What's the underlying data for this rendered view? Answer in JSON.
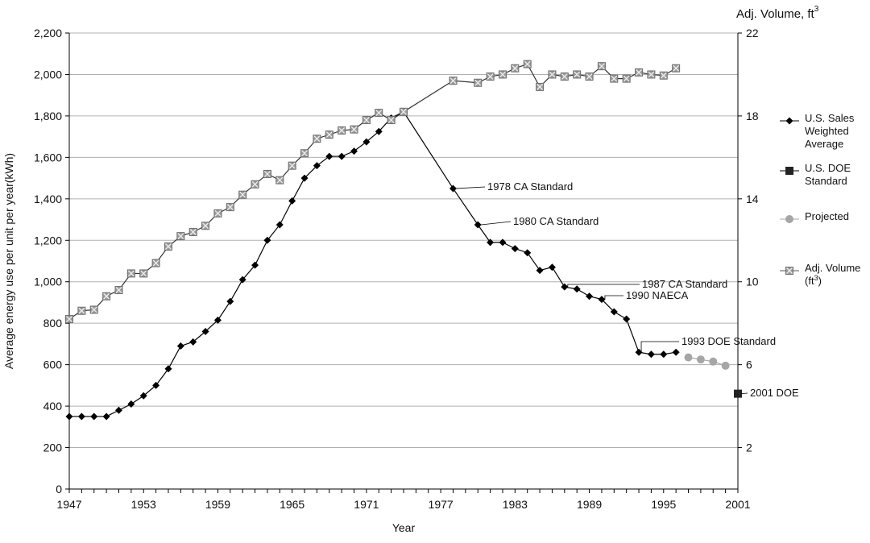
{
  "chart_data": {
    "type": "line",
    "xlabel": "Year",
    "ylabel": "Average energy use per unit per year(kWh)",
    "y2label": "Adj. Volume, ft",
    "y2label_sup": "3",
    "xlim": [
      1947,
      2001
    ],
    "ylim": [
      0,
      2200
    ],
    "y2lim": [
      0,
      22
    ],
    "x_ticks": [
      "1947",
      "1953",
      "1959",
      "1965",
      "1971",
      "1977",
      "1983",
      "1989",
      "1995",
      "2001"
    ],
    "y_ticks": [
      "0",
      "200",
      "400",
      "600",
      "800",
      "1,000",
      "1,200",
      "1,400",
      "1,600",
      "1,800",
      "2,000",
      "2,200"
    ],
    "y2_ticks": [
      "2",
      "6",
      "10",
      "14",
      "18",
      "22"
    ],
    "grid": true,
    "legend_position": "right",
    "series": [
      {
        "name": "U.S. Sales Weighted Average",
        "name_lines": [
          "U.S. Sales",
          "Weighted",
          "Average"
        ],
        "axis": "left",
        "color": "#000000",
        "marker": "diamond",
        "x": [
          1947,
          1948,
          1949,
          1950,
          1951,
          1952,
          1953,
          1954,
          1955,
          1956,
          1957,
          1958,
          1959,
          1960,
          1961,
          1962,
          1963,
          1964,
          1965,
          1966,
          1967,
          1968,
          1969,
          1970,
          1971,
          1972,
          1973,
          1974,
          1978,
          1980,
          1981,
          1982,
          1983,
          1984,
          1985,
          1986,
          1987,
          1988,
          1989,
          1990,
          1991,
          1992,
          1993,
          1994,
          1995,
          1996
        ],
        "y": [
          350,
          350,
          350,
          350,
          380,
          410,
          450,
          500,
          580,
          690,
          710,
          760,
          815,
          905,
          1010,
          1080,
          1200,
          1275,
          1390,
          1500,
          1560,
          1605,
          1605,
          1630,
          1675,
          1725,
          1790,
          1820,
          1450,
          1275,
          1190,
          1190,
          1160,
          1140,
          1055,
          1070,
          975,
          965,
          930,
          915,
          855,
          820,
          660,
          650,
          650,
          660
        ]
      },
      {
        "name": "U.S. DOE Standard",
        "name_lines": [
          "U.S. DOE",
          "Standard"
        ],
        "axis": "left",
        "color": "#222222",
        "marker": "square",
        "x": [
          2001
        ],
        "y": [
          460
        ]
      },
      {
        "name": "Projected",
        "name_lines": [
          "Projected"
        ],
        "axis": "left",
        "color": "#a6a6a6",
        "marker": "circle",
        "x": [
          1997,
          1998,
          1999,
          2000
        ],
        "y": [
          635,
          625,
          615,
          595
        ]
      },
      {
        "name": "Adj. Volume (ft3)",
        "name_lines": [
          "Adj. Volume",
          "(ft"
        ],
        "name_sup": "3",
        "name_tail": ")",
        "axis": "right",
        "color": "#777777",
        "marker": "square-x",
        "x": [
          1947,
          1948,
          1949,
          1950,
          1951,
          1952,
          1953,
          1954,
          1955,
          1956,
          1957,
          1958,
          1959,
          1960,
          1961,
          1962,
          1963,
          1964,
          1965,
          1966,
          1967,
          1968,
          1969,
          1970,
          1971,
          1972,
          1973,
          1974,
          1978,
          1980,
          1981,
          1982,
          1983,
          1984,
          1985,
          1986,
          1987,
          1988,
          1989,
          1990,
          1991,
          1992,
          1993,
          1994,
          1995,
          1996
        ],
        "y": [
          8.2,
          8.6,
          8.65,
          9.3,
          9.6,
          10.4,
          10.4,
          10.9,
          11.7,
          12.2,
          12.4,
          12.7,
          13.3,
          13.6,
          14.2,
          14.7,
          15.2,
          14.9,
          15.6,
          16.2,
          16.9,
          17.1,
          17.3,
          17.35,
          17.8,
          18.15,
          17.8,
          18.2,
          19.7,
          19.6,
          19.9,
          20.0,
          20.3,
          20.5,
          19.4,
          20.0,
          19.9,
          20.0,
          19.9,
          20.4,
          19.8,
          19.8,
          20.1,
          20.0,
          19.95,
          20.3
        ]
      }
    ],
    "annotations": [
      {
        "text": "1978 CA Standard",
        "x": 1978,
        "y": 1450
      },
      {
        "text": "1980 CA Standard",
        "x": 1980,
        "y": 1275
      },
      {
        "text": "1987 CA Standard",
        "x": 1987,
        "y": 975
      },
      {
        "text": "1990 NAECA",
        "x": 1990,
        "y": 915
      },
      {
        "text": "1993 DOE Standard",
        "x": 1993,
        "y": 660
      },
      {
        "text": "2001 DOE",
        "x": 2001,
        "y": 460
      }
    ]
  }
}
